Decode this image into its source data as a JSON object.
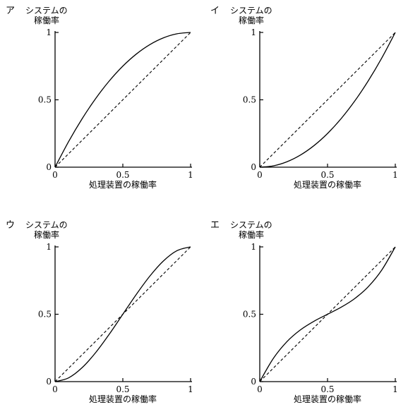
{
  "chart_data": [
    {
      "type": "line",
      "panel_label": "ア",
      "ylabel_line1": "システムの",
      "ylabel_line2": "稼働率",
      "xlabel": "処理装置の稼働率",
      "x_ticks": [
        "0",
        "0.5",
        "1"
      ],
      "y_ticks": [
        "0",
        "0.5",
        "1"
      ],
      "xlim": [
        0,
        1
      ],
      "ylim": [
        0,
        1
      ],
      "series": [
        {
          "style": "solid",
          "x": [
            0,
            0.1,
            0.2,
            0.3,
            0.4,
            0.5,
            0.6,
            0.7,
            0.8,
            0.9,
            1
          ],
          "y": [
            0,
            0.19,
            0.36,
            0.51,
            0.64,
            0.75,
            0.84,
            0.91,
            0.96,
            0.99,
            1
          ]
        },
        {
          "style": "dashed",
          "x": [
            0,
            1
          ],
          "y": [
            0,
            1
          ]
        }
      ]
    },
    {
      "type": "line",
      "panel_label": "イ",
      "ylabel_line1": "システムの",
      "ylabel_line2": "稼働率",
      "xlabel": "処理装置の稼働率",
      "x_ticks": [
        "0",
        "0.5",
        "1"
      ],
      "y_ticks": [
        "0",
        "0.5",
        "1"
      ],
      "xlim": [
        0,
        1
      ],
      "ylim": [
        0,
        1
      ],
      "series": [
        {
          "style": "solid",
          "x": [
            0,
            0.1,
            0.2,
            0.3,
            0.4,
            0.5,
            0.6,
            0.7,
            0.8,
            0.9,
            1
          ],
          "y": [
            0,
            0.01,
            0.04,
            0.09,
            0.16,
            0.25,
            0.36,
            0.49,
            0.64,
            0.81,
            1
          ]
        },
        {
          "style": "dashed",
          "x": [
            0,
            1
          ],
          "y": [
            0,
            1
          ]
        }
      ]
    },
    {
      "type": "line",
      "panel_label": "ウ",
      "ylabel_line1": "システムの",
      "ylabel_line2": "稼働率",
      "xlabel": "処理装置の稼働率",
      "x_ticks": [
        "0",
        "0.5",
        "1"
      ],
      "y_ticks": [
        "0",
        "0.5",
        "1"
      ],
      "xlim": [
        0,
        1
      ],
      "ylim": [
        0,
        1
      ],
      "series": [
        {
          "style": "solid",
          "x": [
            0,
            0.1,
            0.2,
            0.3,
            0.4,
            0.5,
            0.6,
            0.7,
            0.8,
            0.9,
            1
          ],
          "y": [
            0,
            0.028,
            0.104,
            0.216,
            0.352,
            0.5,
            0.648,
            0.784,
            0.896,
            0.972,
            1
          ]
        },
        {
          "style": "dashed",
          "x": [
            0,
            1
          ],
          "y": [
            0,
            1
          ]
        }
      ]
    },
    {
      "type": "line",
      "panel_label": "エ",
      "ylabel_line1": "システムの",
      "ylabel_line2": "稼働率",
      "xlabel": "処理装置の稼働率",
      "x_ticks": [
        "0",
        "0.5",
        "1"
      ],
      "y_ticks": [
        "0",
        "0.5",
        "1"
      ],
      "xlim": [
        0,
        1
      ],
      "ylim": [
        0,
        1
      ],
      "series": [
        {
          "style": "solid",
          "x": [
            0,
            0.1,
            0.2,
            0.3,
            0.4,
            0.5,
            0.6,
            0.7,
            0.8,
            0.9,
            1
          ],
          "y": [
            0,
            0.172,
            0.296,
            0.384,
            0.448,
            0.5,
            0.552,
            0.616,
            0.704,
            0.828,
            1
          ]
        },
        {
          "style": "dashed",
          "x": [
            0,
            1
          ],
          "y": [
            0,
            1
          ]
        }
      ]
    }
  ]
}
